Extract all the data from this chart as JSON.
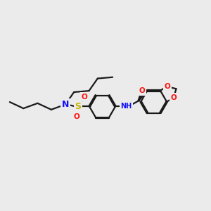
{
  "bg_color": "#ebebeb",
  "bond_color": "#1a1a1a",
  "bond_width": 1.6,
  "dbo": 0.028,
  "atom_colors": {
    "N_blue": "#1010ff",
    "S": "#c8b400",
    "O_red": "#ff1010",
    "N_teal": "#1010ff",
    "C": "#1a1a1a"
  },
  "figsize": [
    3.0,
    3.0
  ],
  "dpi": 100,
  "xlim": [
    0,
    10
  ],
  "ylim": [
    1,
    8
  ]
}
